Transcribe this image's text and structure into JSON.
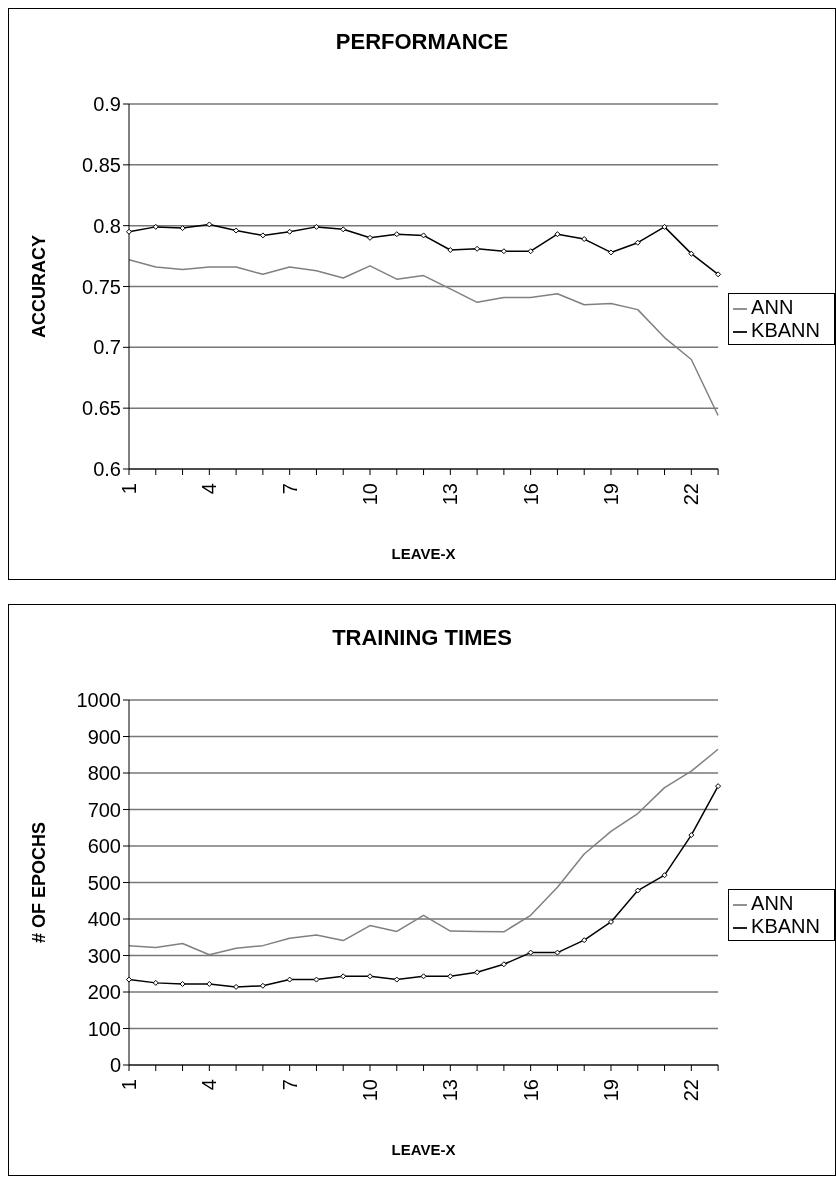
{
  "chart_data": [
    {
      "type": "line",
      "title": "PERFORMANCE",
      "xlabel": "LEAVE-X",
      "ylabel": "ACCURACY",
      "categories": [
        "1",
        null,
        null,
        "4",
        null,
        null,
        "7",
        null,
        null,
        "10",
        null,
        null,
        "13",
        null,
        null,
        "16",
        null,
        null,
        "19",
        null,
        null,
        "22",
        null
      ],
      "ylim": [
        0.6,
        0.9
      ],
      "yticks": [
        0.6,
        0.65,
        0.7,
        0.75,
        0.8,
        0.85,
        0.9
      ],
      "grid": "y",
      "legend": "right",
      "series": [
        {
          "name": "KBANN",
          "color": "#000000",
          "marker": "diamond",
          "values": [
            0.795,
            0.799,
            0.798,
            0.801,
            0.796,
            0.792,
            0.795,
            0.799,
            0.797,
            0.79,
            0.793,
            0.792,
            0.78,
            0.781,
            0.779,
            0.779,
            0.793,
            0.789,
            0.778,
            0.786,
            0.799,
            0.777,
            0.76
          ]
        },
        {
          "name": "ANN",
          "color": "#808080",
          "marker": "none",
          "values": [
            0.772,
            0.766,
            0.764,
            0.766,
            0.766,
            0.76,
            0.766,
            0.763,
            0.757,
            0.767,
            0.756,
            0.759,
            0.748,
            0.737,
            0.741,
            0.741,
            0.744,
            0.735,
            0.736,
            0.731,
            0.708,
            0.69,
            0.644
          ]
        }
      ]
    },
    {
      "type": "line",
      "title": "TRAINING TIMES",
      "xlabel": "LEAVE-X",
      "ylabel": "# OF EPOCHS",
      "categories": [
        "1",
        null,
        null,
        "4",
        null,
        null,
        "7",
        null,
        null,
        "10",
        null,
        null,
        "13",
        null,
        null,
        "16",
        null,
        null,
        "19",
        null,
        null,
        "22",
        null
      ],
      "ylim": [
        0,
        1000
      ],
      "yticks": [
        0,
        100,
        200,
        300,
        400,
        500,
        600,
        700,
        800,
        900,
        1000
      ],
      "grid": "y",
      "legend": "right",
      "series": [
        {
          "name": "KBANN",
          "color": "#000000",
          "marker": "diamond",
          "values": [
            234,
            225,
            222,
            222,
            214,
            217,
            234,
            234,
            243,
            243,
            234,
            243,
            243,
            254,
            276,
            308,
            308,
            342,
            392,
            478,
            520,
            630,
            764
          ]
        },
        {
          "name": "ANN",
          "color": "#808080",
          "marker": "none",
          "values": [
            327,
            322,
            333,
            302,
            320,
            327,
            347,
            356,
            341,
            382,
            366,
            410,
            367,
            366,
            365,
            410,
            487,
            578,
            640,
            689,
            760,
            805,
            865
          ]
        }
      ]
    }
  ]
}
